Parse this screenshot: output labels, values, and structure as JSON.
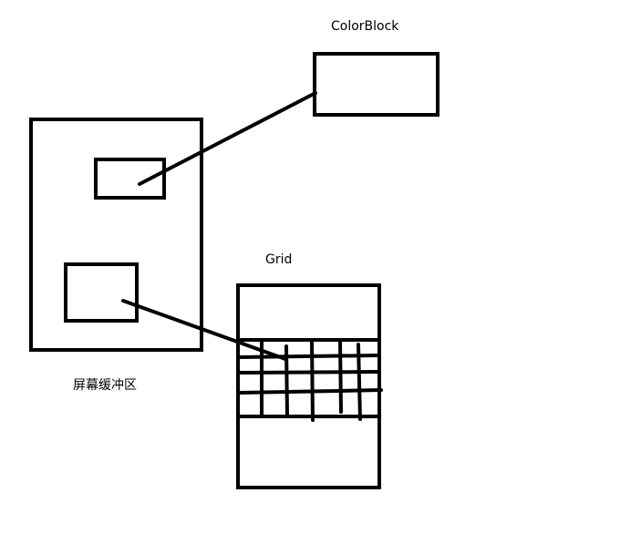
{
  "labels": {
    "color_block": "ColorBlock",
    "grid": "Grid",
    "screen_buffer": "屏幕缓冲区"
  },
  "colors": {
    "stroke": "#000000",
    "background": "#ffffff"
  }
}
